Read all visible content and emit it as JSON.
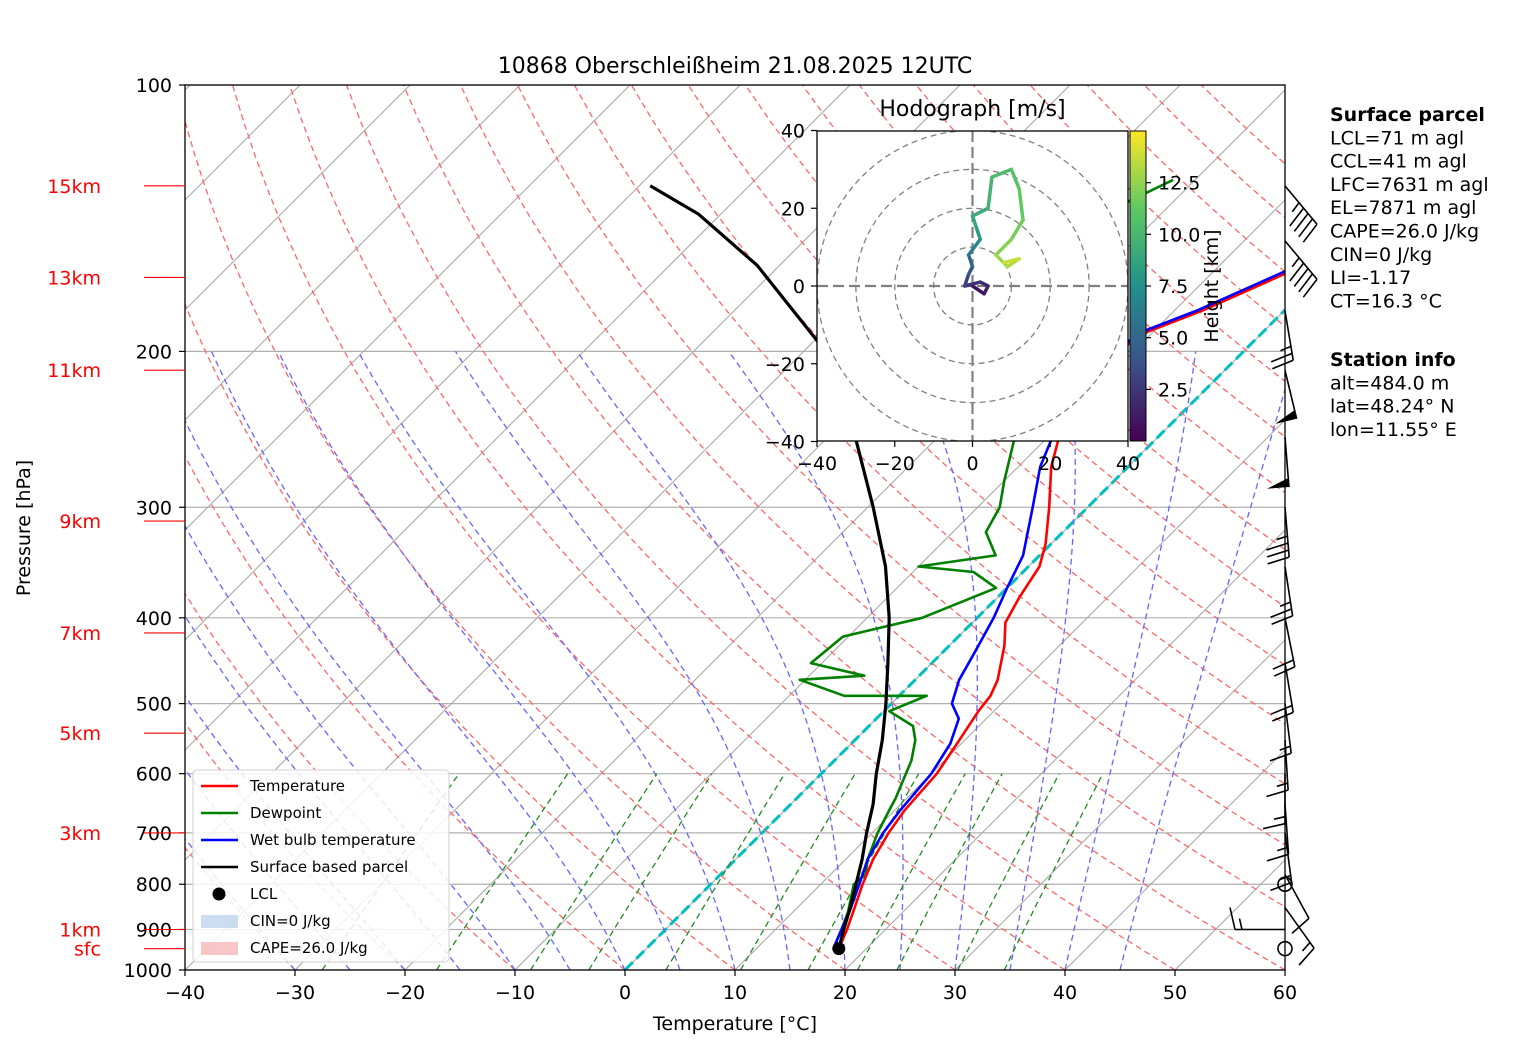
{
  "chart_data": {
    "type": "line",
    "subtype": "skew-T log-P diagram",
    "title": "10868 Oberschleißheim 21.08.2025 12UTC",
    "xlabel": "Temperature [°C]",
    "ylabel": "Pressure [hPa]",
    "xlim": [
      -40,
      60
    ],
    "ylim": [
      1000,
      100
    ],
    "yscale": "log",
    "x_ticks": [
      "−40",
      "−30",
      "−20",
      "−10",
      "0",
      "10",
      "20",
      "30",
      "40",
      "50",
      "60"
    ],
    "x_tick_values": [
      -40,
      -30,
      -20,
      -10,
      0,
      10,
      20,
      30,
      40,
      50,
      60
    ],
    "y_ticks": [
      "100",
      "200",
      "300",
      "400",
      "500",
      "600",
      "700",
      "800",
      "900",
      "1000"
    ],
    "y_tick_values": [
      100,
      200,
      300,
      400,
      500,
      600,
      700,
      800,
      900,
      1000
    ],
    "height_labels": [
      {
        "label": "15km",
        "p": 130
      },
      {
        "label": "13km",
        "p": 165
      },
      {
        "label": "11km",
        "p": 210
      },
      {
        "label": "9km",
        "p": 311
      },
      {
        "label": "7km",
        "p": 416
      },
      {
        "label": "5km",
        "p": 540
      },
      {
        "label": "3km",
        "p": 700
      },
      {
        "label": "1km",
        "p": 900
      },
      {
        "label": "sfc",
        "p": 946
      }
    ],
    "grid": true,
    "colors": {
      "temperature": "#ff0000",
      "dewpoint": "#008000",
      "wetbulb": "#0000ff",
      "parcel": "#000000",
      "zero_isotherm": "#00bfbf",
      "dry_adiabat": "#ff6666",
      "moist_adiabat": "#6666ff",
      "mixing_ratio": "#228b22",
      "cape_fill": "#f4a0a0",
      "cin_fill": "#a9c8e8",
      "height_label": "#ff0000"
    },
    "series": [
      {
        "name": "Temperature",
        "points": [
          [
            17.5,
            946
          ],
          [
            16.5,
            900
          ],
          [
            15.2,
            850
          ],
          [
            13.8,
            800
          ],
          [
            12.5,
            750
          ],
          [
            11.5,
            700
          ],
          [
            10.9,
            660
          ],
          [
            10.5,
            600
          ],
          [
            9.5,
            550
          ],
          [
            8.6,
            510
          ],
          [
            8.3,
            490
          ],
          [
            7.5,
            470
          ],
          [
            5.0,
            430
          ],
          [
            3.0,
            405
          ],
          [
            2.0,
            380
          ],
          [
            1.0,
            350
          ],
          [
            -0.5,
            330
          ],
          [
            -3.5,
            300
          ],
          [
            -7.0,
            270
          ],
          [
            -9.5,
            245
          ],
          [
            -10.8,
            220
          ],
          [
            -11.5,
            200
          ],
          [
            -10.5,
            190
          ],
          [
            -7.5,
            180
          ],
          [
            -5.0,
            170
          ],
          [
            -1.0,
            155
          ],
          [
            2.0,
            145
          ],
          [
            2.5,
            140
          ],
          [
            4.0,
            138
          ],
          [
            7.5,
            128
          ]
        ]
      },
      {
        "name": "Dewpoint",
        "points": [
          [
            17.0,
            946
          ],
          [
            16.0,
            900
          ],
          [
            15.0,
            860
          ],
          [
            13.0,
            800
          ],
          [
            13.2,
            780
          ],
          [
            12.0,
            750
          ],
          [
            10.5,
            700
          ],
          [
            9.5,
            660
          ],
          [
            9.0,
            640
          ],
          [
            7.0,
            580
          ],
          [
            5.5,
            550
          ],
          [
            4.0,
            530
          ],
          [
            0.5,
            510
          ],
          [
            2.5,
            490
          ],
          [
            -5.0,
            490
          ],
          [
            -10.5,
            470
          ],
          [
            -5.0,
            465
          ],
          [
            -11.0,
            450
          ],
          [
            -10.5,
            420
          ],
          [
            -5.0,
            400
          ],
          [
            -1.0,
            370
          ],
          [
            -4.5,
            355
          ],
          [
            -10.0,
            350
          ],
          [
            -4.0,
            340
          ],
          [
            -7.0,
            320
          ],
          [
            -8.0,
            300
          ],
          [
            -10.0,
            280
          ],
          [
            -13.0,
            250
          ],
          [
            -16.0,
            225
          ],
          [
            -15.0,
            215
          ],
          [
            -14.0,
            205
          ],
          [
            -19.0,
            200
          ],
          [
            -28.0,
            195
          ],
          [
            -28.0,
            180
          ],
          [
            -28.5,
            165
          ],
          [
            -27.0,
            150
          ],
          [
            -25.0,
            140
          ],
          [
            -24.0,
            135
          ],
          [
            -22.0,
            128
          ]
        ]
      },
      {
        "name": "Wet bulb temperature",
        "points": [
          [
            17.0,
            946
          ],
          [
            16.0,
            900
          ],
          [
            15.0,
            855
          ],
          [
            13.5,
            800
          ],
          [
            12.0,
            750
          ],
          [
            11.0,
            700
          ],
          [
            10.5,
            660
          ],
          [
            10.0,
            600
          ],
          [
            9.0,
            555
          ],
          [
            7.5,
            520
          ],
          [
            5.5,
            500
          ],
          [
            4.0,
            470
          ],
          [
            3.0,
            440
          ],
          [
            1.5,
            400
          ],
          [
            0.0,
            370
          ],
          [
            -1.5,
            340
          ],
          [
            -5.0,
            300
          ],
          [
            -8.0,
            270
          ],
          [
            -10.0,
            245
          ],
          [
            -11.2,
            220
          ],
          [
            -11.8,
            200
          ],
          [
            -11.0,
            190
          ],
          [
            -8.0,
            180
          ],
          [
            -5.5,
            170
          ],
          [
            -1.5,
            155
          ],
          [
            2.0,
            145
          ],
          [
            3.5,
            138
          ],
          [
            7.0,
            128
          ]
        ]
      },
      {
        "name": "Surface based parcel",
        "points": [
          [
            17.5,
            946
          ],
          [
            16.2,
            900
          ],
          [
            14.8,
            850
          ],
          [
            13.2,
            800
          ],
          [
            11.5,
            750
          ],
          [
            9.5,
            700
          ],
          [
            7.5,
            650
          ],
          [
            5.0,
            600
          ],
          [
            2.5,
            550
          ],
          [
            -0.5,
            500
          ],
          [
            -4.0,
            450
          ],
          [
            -8.0,
            400
          ],
          [
            -13.0,
            350
          ],
          [
            -19.5,
            300
          ],
          [
            -27.5,
            250
          ],
          [
            -38.0,
            200
          ],
          [
            -52.0,
            160
          ],
          [
            -62.0,
            140
          ],
          [
            -69.0,
            130
          ]
        ]
      }
    ],
    "lcl_point": [
      17.5,
      946
    ],
    "legend": {
      "position": "lower-left",
      "entries": [
        {
          "label": "Temperature",
          "kind": "line",
          "color": "#ff0000"
        },
        {
          "label": "Dewpoint",
          "kind": "line",
          "color": "#008000"
        },
        {
          "label": "Wet bulb temperature",
          "kind": "line",
          "color": "#0000ff"
        },
        {
          "label": "Surface based parcel",
          "kind": "line",
          "color": "#000000"
        },
        {
          "label": "LCL",
          "kind": "dot",
          "color": "#000000"
        },
        {
          "label": "CIN=0 J/kg",
          "kind": "patch",
          "color": "#a9c8e8"
        },
        {
          "label": "CAPE=26.0 J/kg",
          "kind": "patch",
          "color": "#f4a0a0"
        }
      ]
    },
    "wind_barbs": [
      {
        "p": 946,
        "calm": true
      },
      {
        "p": 900,
        "u": 8.0,
        "v": 0.0
      },
      {
        "p": 850,
        "u": -5.0,
        "v": 7.0
      },
      {
        "p": 800,
        "calm": true
      },
      {
        "p": 780,
        "u": -3.0,
        "v": 5.5
      },
      {
        "p": 700,
        "u": -1.0,
        "v": 7.5
      },
      {
        "p": 650,
        "u": -0.5,
        "v": 7.0
      },
      {
        "p": 600,
        "u": 0.0,
        "v": 7.5
      },
      {
        "p": 550,
        "u": -0.5,
        "v": 8.0
      },
      {
        "p": 500,
        "u": -1.0,
        "v": 8.0
      },
      {
        "p": 450,
        "u": -1.5,
        "v": 9.0
      },
      {
        "p": 400,
        "u": -2.0,
        "v": 10.0
      },
      {
        "p": 350,
        "u": -2.0,
        "v": 13.0
      },
      {
        "p": 300,
        "u": -1.5,
        "v": 18.0
      },
      {
        "p": 250,
        "u": -2.0,
        "v": 25.0
      },
      {
        "p": 210,
        "u": -6.0,
        "v": 25.0
      },
      {
        "p": 180,
        "u": -2.0,
        "v": 12.0
      },
      {
        "p": 150,
        "u": -15.0,
        "v": 18.0
      },
      {
        "p": 130,
        "u": -15.0,
        "v": 18.0
      }
    ],
    "hodograph": {
      "title": "Hodograph [m/s]",
      "xlim": [
        -40,
        40
      ],
      "ylim": [
        -40,
        40
      ],
      "ticks": [
        "−40",
        "−20",
        "0",
        "20",
        "40"
      ],
      "tick_values": [
        -40,
        -20,
        0,
        20,
        40
      ],
      "rings": [
        10,
        20,
        30,
        40
      ],
      "colorbar_label": "Height [km]",
      "colorbar_ticks": [
        "2.5",
        "5.0",
        "7.5",
        "10.0",
        "12.5"
      ],
      "colorbar_values": [
        2.5,
        5.0,
        7.5,
        10.0,
        12.5
      ],
      "zmax": 15,
      "points": [
        {
          "u": 0.0,
          "v": 0.0,
          "z": 0.5
        },
        {
          "u": 3.0,
          "v": -2.0,
          "z": 1.0
        },
        {
          "u": 4.0,
          "v": 0.0,
          "z": 1.5
        },
        {
          "u": 2.0,
          "v": 1.0,
          "z": 2.0
        },
        {
          "u": -2.0,
          "v": 0.0,
          "z": 2.5
        },
        {
          "u": -1.0,
          "v": 3.0,
          "z": 3.5
        },
        {
          "u": 0.0,
          "v": 5.0,
          "z": 4.5
        },
        {
          "u": -1.0,
          "v": 8.0,
          "z": 5.5
        },
        {
          "u": 0.5,
          "v": 10.0,
          "z": 6.5
        },
        {
          "u": 2.0,
          "v": 12.0,
          "z": 7.5
        },
        {
          "u": 1.0,
          "v": 15.0,
          "z": 8.5
        },
        {
          "u": 0.0,
          "v": 18.0,
          "z": 9.0
        },
        {
          "u": 4.0,
          "v": 20.0,
          "z": 9.5
        },
        {
          "u": 5.0,
          "v": 28.0,
          "z": 10.0
        },
        {
          "u": 10.0,
          "v": 30.0,
          "z": 10.5
        },
        {
          "u": 12.0,
          "v": 25.0,
          "z": 11.0
        },
        {
          "u": 13.0,
          "v": 17.0,
          "z": 11.5
        },
        {
          "u": 10.0,
          "v": 12.0,
          "z": 12.0
        },
        {
          "u": 6.0,
          "v": 8.0,
          "z": 12.5
        },
        {
          "u": 9.0,
          "v": 5.0,
          "z": 13.0
        },
        {
          "u": 12.0,
          "v": 7.0,
          "z": 13.5
        },
        {
          "u": 8.0,
          "v": 6.0,
          "z": 14.0
        }
      ]
    }
  },
  "info": {
    "surface": {
      "title": "Surface parcel",
      "lines": [
        "LCL=71 m agl",
        "CCL=41 m agl",
        "LFC=7631 m agl",
        "EL=7871 m agl",
        "CAPE=26.0 J/kg",
        "CIN=0 J/kg",
        "LI=-1.17",
        "CT=16.3 °C"
      ]
    },
    "station": {
      "title": "Station info",
      "lines": [
        "alt=484.0 m",
        "lat=48.24° N",
        "lon=11.55° E"
      ]
    }
  }
}
